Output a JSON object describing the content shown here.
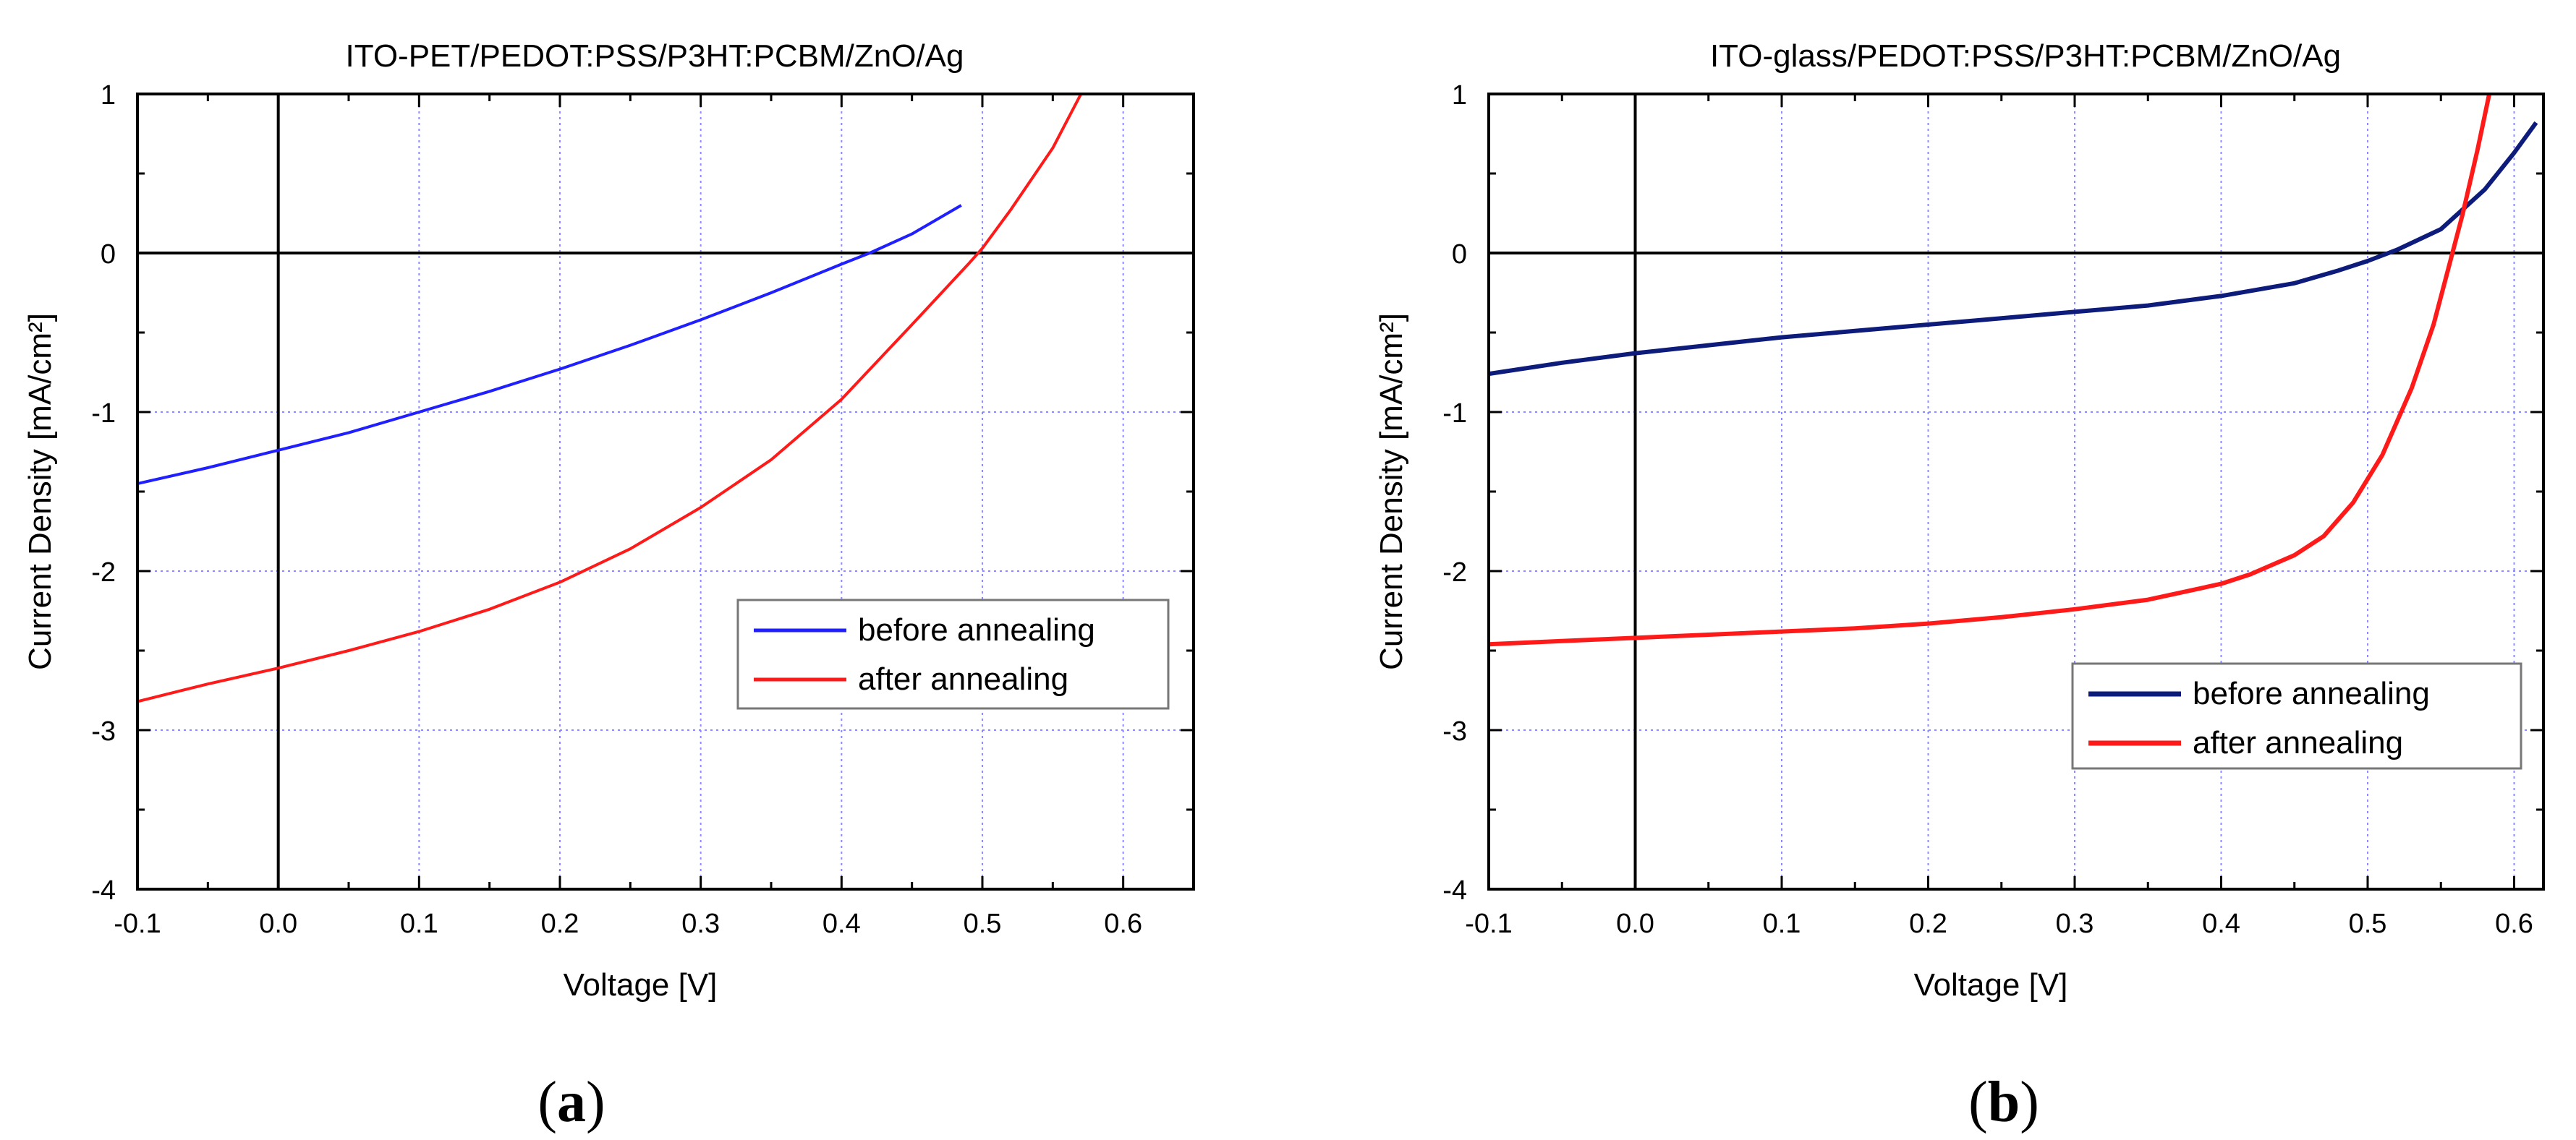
{
  "chart_data": [
    {
      "type": "line",
      "panel_label": "a",
      "title": "ITO-PET/PEDOT:PSS/P3HT:PCBM/ZnO/Ag",
      "xlabel": "Voltage [V]",
      "ylabel": "Current Density [mA/cm²]",
      "xlim": [
        -0.1,
        0.65
      ],
      "ylim": [
        -4,
        1
      ],
      "xticks": [
        -0.1,
        0.0,
        0.1,
        0.2,
        0.3,
        0.4,
        0.5,
        0.6
      ],
      "yticks": [
        -4,
        -3,
        -2,
        -1,
        0,
        1
      ],
      "xtick_labels": [
        "-0.1",
        "0.0",
        "0.1",
        "0.2",
        "0.3",
        "0.4",
        "0.5",
        "0.6"
      ],
      "ytick_labels": [
        "-4",
        "-3",
        "-2",
        "-1",
        "0",
        "1"
      ],
      "grid": true,
      "legend_position": "center-right",
      "series": [
        {
          "name": "before annealing",
          "color": "#1f1fff",
          "x": [
            -0.1,
            -0.05,
            0.0,
            0.05,
            0.1,
            0.15,
            0.2,
            0.25,
            0.3,
            0.35,
            0.4,
            0.42,
            0.45,
            0.485
          ],
          "y": [
            -1.45,
            -1.35,
            -1.24,
            -1.13,
            -1.0,
            -0.87,
            -0.73,
            -0.58,
            -0.42,
            -0.25,
            -0.07,
            0.0,
            0.12,
            0.3
          ]
        },
        {
          "name": "after annealing",
          "color": "#ff1a1a",
          "x": [
            -0.1,
            -0.05,
            0.0,
            0.05,
            0.1,
            0.15,
            0.2,
            0.25,
            0.3,
            0.35,
            0.4,
            0.45,
            0.49,
            0.5,
            0.52,
            0.55,
            0.57
          ],
          "y": [
            -2.82,
            -2.71,
            -2.61,
            -2.5,
            -2.38,
            -2.24,
            -2.07,
            -1.86,
            -1.6,
            -1.3,
            -0.92,
            -0.45,
            -0.07,
            0.03,
            0.27,
            0.66,
            1.0
          ]
        }
      ]
    },
    {
      "type": "line",
      "panel_label": "b",
      "title": "ITO-glass/PEDOT:PSS/P3HT:PCBM/ZnO/Ag",
      "xlabel": "Voltage [V]",
      "ylabel": "Current Density [mA/cm²]",
      "xlim": [
        -0.1,
        0.62
      ],
      "ylim": [
        -4,
        1
      ],
      "xticks": [
        -0.1,
        0.0,
        0.1,
        0.2,
        0.3,
        0.4,
        0.5,
        0.6
      ],
      "yticks": [
        -4,
        -3,
        -2,
        -1,
        0,
        1
      ],
      "xtick_labels": [
        "-0.1",
        "0.0",
        "0.1",
        "0.2",
        "0.3",
        "0.4",
        "0.5",
        "0.6"
      ],
      "ytick_labels": [
        "-4",
        "-3",
        "-2",
        "-1",
        "0",
        "1"
      ],
      "grid": true,
      "legend_position": "lower-right",
      "series": [
        {
          "name": "before annealing",
          "color": "#0d1b7a",
          "x": [
            -0.1,
            -0.05,
            0.0,
            0.05,
            0.1,
            0.15,
            0.2,
            0.25,
            0.3,
            0.35,
            0.4,
            0.45,
            0.48,
            0.5,
            0.52,
            0.55,
            0.58,
            0.6,
            0.615
          ],
          "y": [
            -0.76,
            -0.69,
            -0.63,
            -0.58,
            -0.53,
            -0.49,
            -0.45,
            -0.41,
            -0.37,
            -0.33,
            -0.27,
            -0.19,
            -0.11,
            -0.05,
            0.02,
            0.15,
            0.4,
            0.63,
            0.82
          ]
        },
        {
          "name": "after annealing",
          "color": "#ff1a1a",
          "x": [
            -0.1,
            -0.05,
            0.0,
            0.05,
            0.1,
            0.15,
            0.2,
            0.25,
            0.3,
            0.35,
            0.4,
            0.42,
            0.45,
            0.47,
            0.49,
            0.51,
            0.53,
            0.545,
            0.555,
            0.565,
            0.575,
            0.583
          ],
          "y": [
            -2.46,
            -2.44,
            -2.42,
            -2.4,
            -2.38,
            -2.36,
            -2.33,
            -2.29,
            -2.24,
            -2.18,
            -2.08,
            -2.02,
            -1.9,
            -1.78,
            -1.57,
            -1.27,
            -0.85,
            -0.45,
            -0.1,
            0.25,
            0.65,
            1.0
          ]
        }
      ]
    }
  ]
}
